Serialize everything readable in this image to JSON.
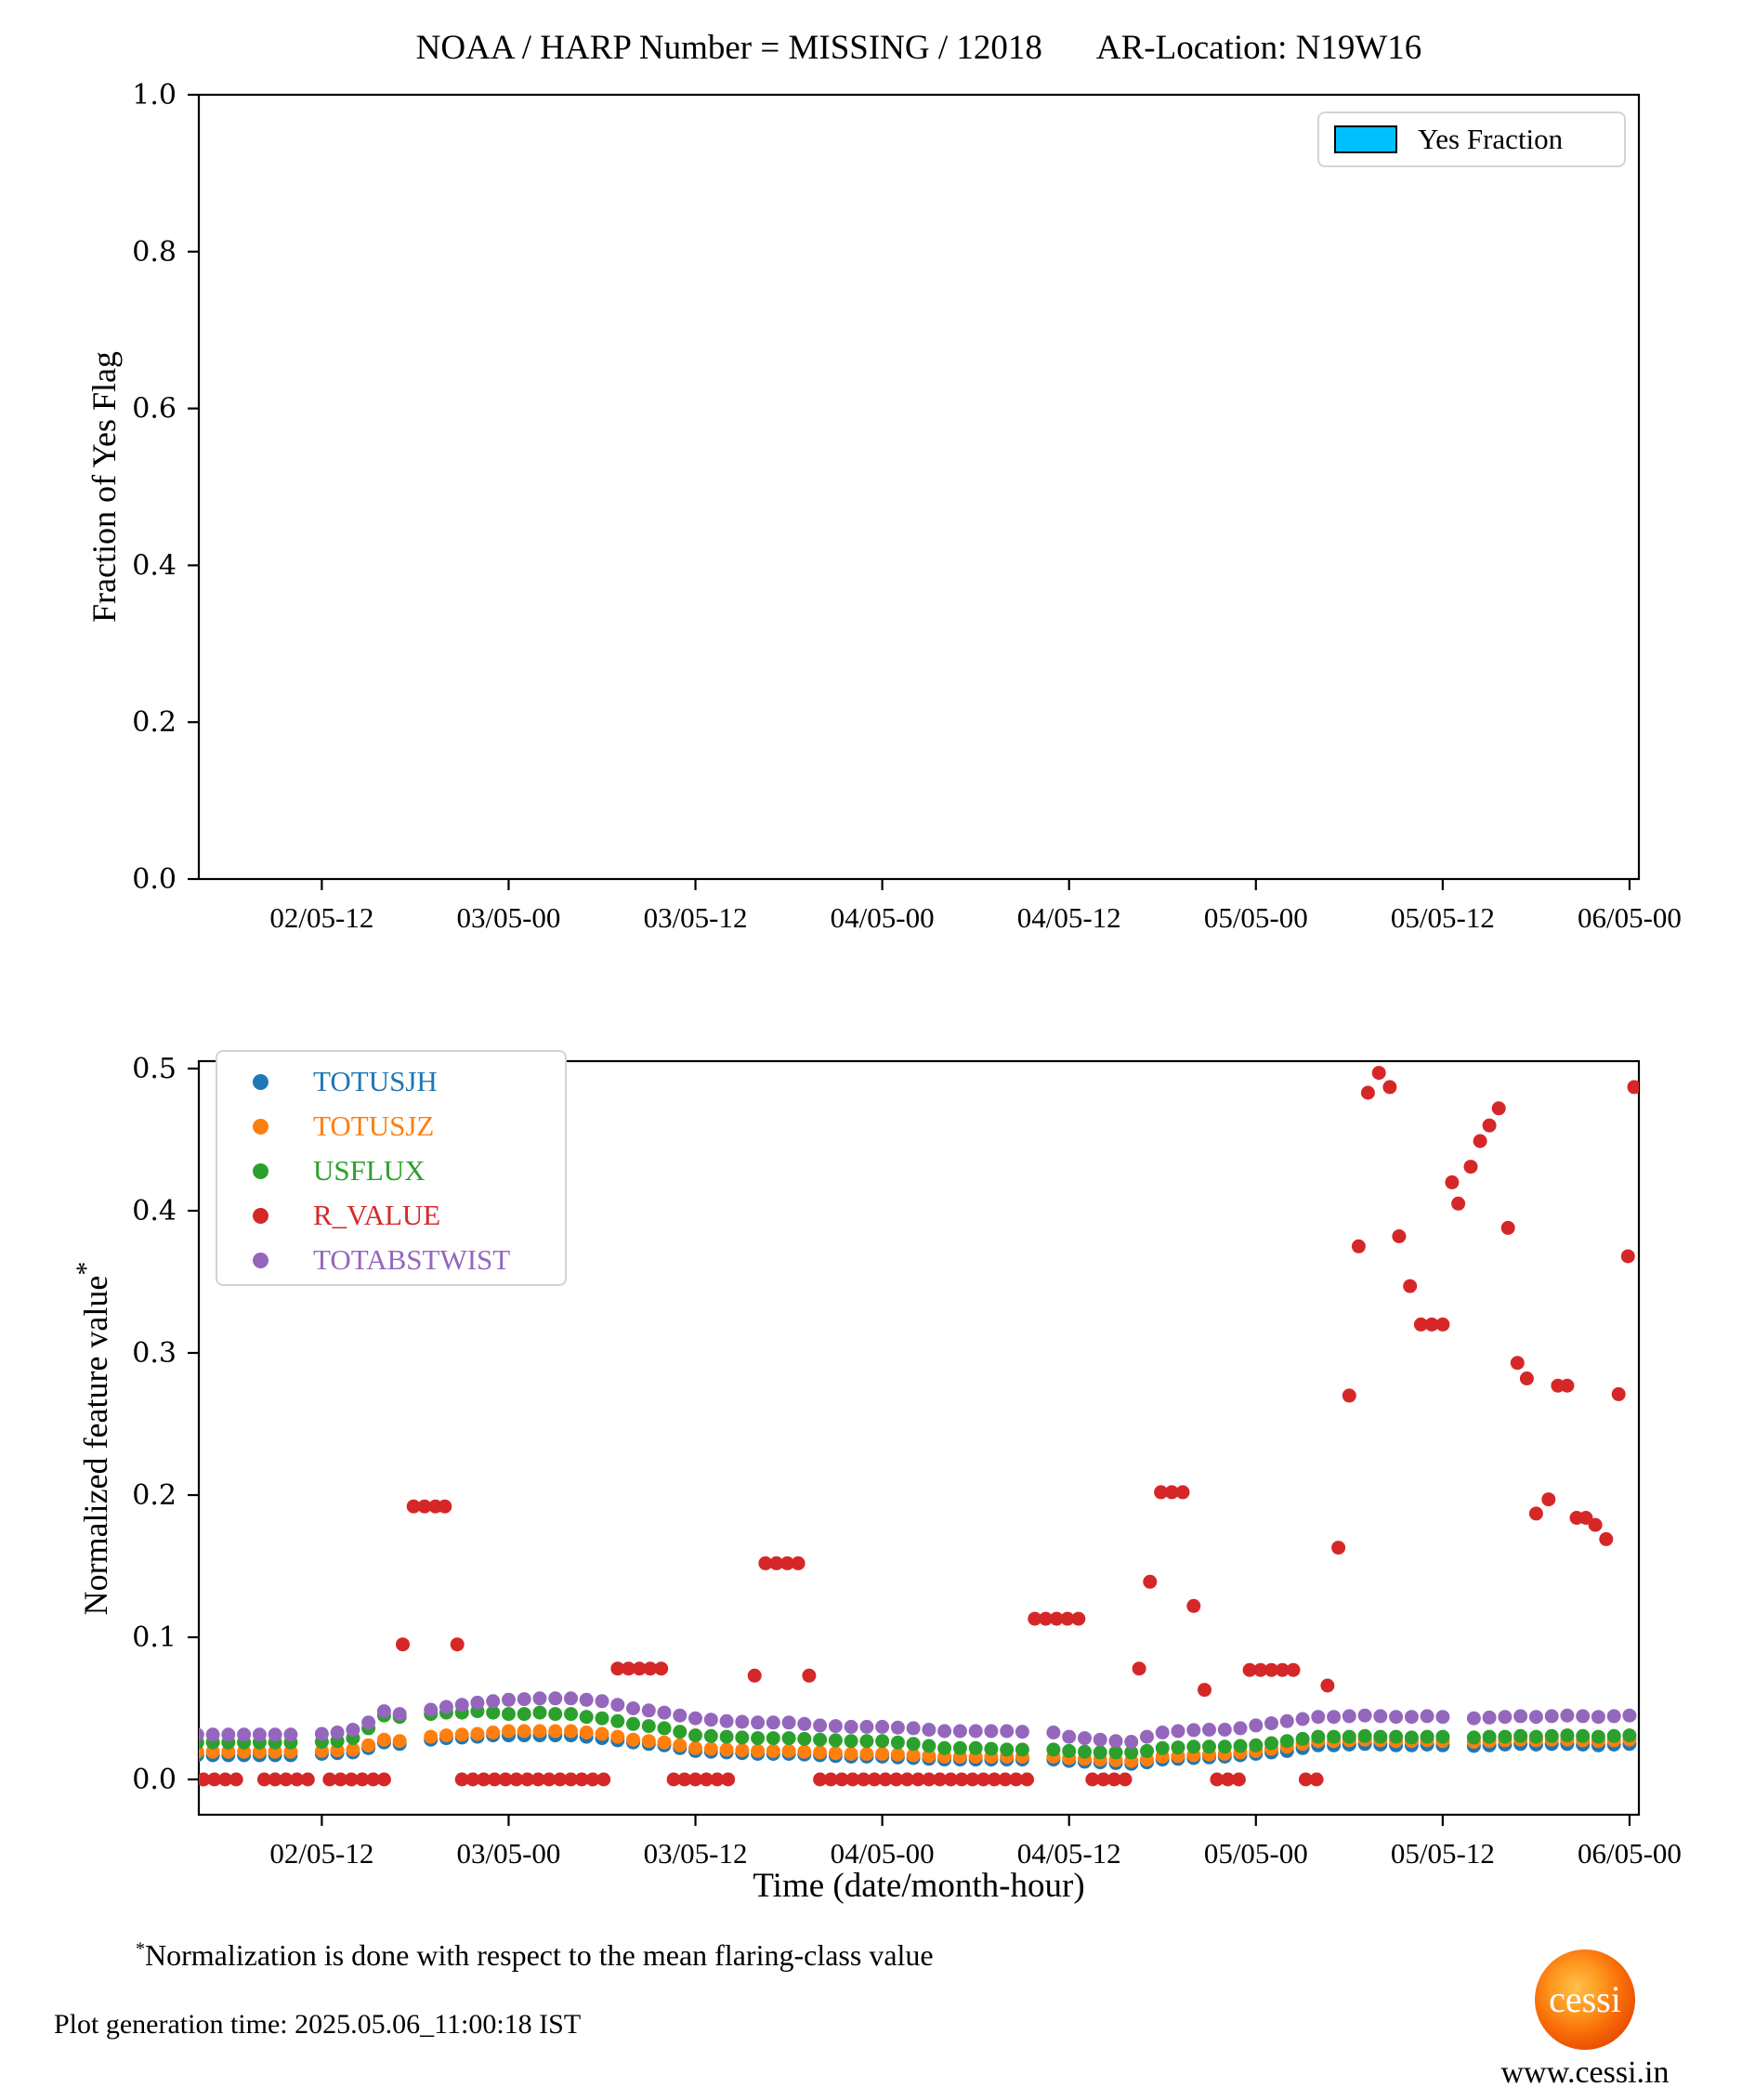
{
  "header": {
    "title_left": "NOAA / HARP Number = MISSING / 12018",
    "title_right": "AR-Location: N19W16"
  },
  "footnote": {
    "marker": "*",
    "text": "Normalization is done with respect to the mean flaring-class value"
  },
  "footer": {
    "plot_generation": "Plot generation time: 2025.05.06_11:00:18 IST",
    "logo_text": "cessi",
    "website": "www.cessi.in"
  },
  "colors": {
    "yes_fraction": "#00BFFF",
    "TOTUSJH": "#1f77b4",
    "TOTUSJZ": "#ff7f0e",
    "USFLUX": "#2ca02c",
    "R_VALUE": "#d62728",
    "TOTABSTWIST": "#9467bd"
  },
  "chart_data": [
    {
      "type": "scatter",
      "title": "NOAA / HARP Number = MISSING / 12018   AR-Location: N19W16",
      "ylabel": "Fraction of Yes Flag",
      "ylim": [
        0.0,
        1.0
      ],
      "yticks": [
        0.0,
        0.2,
        0.4,
        0.6,
        0.8,
        1.0
      ],
      "ytick_labels": [
        "0.0",
        "0.2",
        "0.4",
        "0.6",
        "0.8",
        "1.0"
      ],
      "x_range_hours": [
        4.1,
        96.6
      ],
      "xtick_hours": [
        12,
        24,
        36,
        48,
        60,
        72,
        84,
        96
      ],
      "xtick_labels": [
        "02/05-12",
        "03/05-00",
        "03/05-12",
        "04/05-00",
        "04/05-12",
        "05/05-00",
        "05/05-12",
        "06/05-00"
      ],
      "legend": [
        {
          "label": "Yes Fraction",
          "color": "#00BFFF",
          "marker": "patch"
        }
      ],
      "grid": false,
      "series": []
    },
    {
      "type": "scatter",
      "xlabel": "Time (date/month-hour)",
      "ylabel": "Normalized feature value",
      "ylabel_superscript": "*",
      "ylim": [
        0.0,
        0.5
      ],
      "yticks": [
        0.0,
        0.1,
        0.2,
        0.3,
        0.4,
        0.5
      ],
      "ytick_labels": [
        "0.0",
        "0.1",
        "0.2",
        "0.3",
        "0.4",
        "0.5"
      ],
      "x_range_hours": [
        4.1,
        96.6
      ],
      "x_hours_note": "hours measured from 02/05-00 (date/month-hour)",
      "xtick_hours": [
        12,
        24,
        36,
        48,
        60,
        72,
        84,
        96
      ],
      "xtick_labels": [
        "02/05-12",
        "03/05-00",
        "03/05-12",
        "04/05-00",
        "04/05-12",
        "05/05-00",
        "05/05-12",
        "06/05-00"
      ],
      "grid": false,
      "legend_position": "upper left",
      "series": [
        {
          "name": "TOTUSJH",
          "color": "#1f77b4",
          "start_h": 4,
          "step_h": 1,
          "values": [
            0.017,
            0.017,
            0.017,
            0.017,
            0.017,
            0.017,
            0.017,
            null,
            0.018,
            0.0185,
            0.019,
            0.022,
            0.026,
            0.025,
            null,
            0.028,
            0.029,
            0.0295,
            0.03,
            0.031,
            0.031,
            0.031,
            0.031,
            0.031,
            0.031,
            0.03,
            0.029,
            0.0275,
            0.026,
            0.025,
            0.024,
            0.022,
            0.02,
            0.0195,
            0.019,
            0.0185,
            0.018,
            0.018,
            0.018,
            0.0175,
            0.017,
            0.0165,
            0.016,
            0.016,
            0.016,
            0.0155,
            0.015,
            0.0145,
            0.014,
            0.014,
            0.014,
            0.014,
            0.014,
            0.014,
            null,
            0.014,
            0.013,
            0.0125,
            0.012,
            0.0115,
            0.011,
            0.012,
            0.014,
            0.0145,
            0.015,
            0.0155,
            0.016,
            0.017,
            0.018,
            0.019,
            0.02,
            0.022,
            0.024,
            0.024,
            0.0245,
            0.025,
            0.0245,
            0.024,
            0.024,
            0.0245,
            0.024,
            null,
            0.0235,
            0.024,
            0.0245,
            0.025,
            0.0245,
            0.025,
            0.025,
            0.0245,
            0.024,
            0.0245,
            0.025
          ]
        },
        {
          "name": "TOTUSJZ",
          "color": "#ff7f0e",
          "start_h": 4,
          "step_h": 1,
          "values": [
            0.0195,
            0.0195,
            0.0195,
            0.0195,
            0.0195,
            0.0195,
            0.0195,
            null,
            0.02,
            0.0205,
            0.021,
            0.024,
            0.028,
            0.027,
            null,
            0.03,
            0.031,
            0.0315,
            0.032,
            0.033,
            0.034,
            0.034,
            0.034,
            0.034,
            0.034,
            0.033,
            0.032,
            0.03,
            0.028,
            0.027,
            0.026,
            0.024,
            0.022,
            0.0215,
            0.021,
            0.0205,
            0.02,
            0.02,
            0.02,
            0.0195,
            0.019,
            0.0185,
            0.018,
            0.018,
            0.018,
            0.0175,
            0.017,
            0.0165,
            0.016,
            0.016,
            0.016,
            0.016,
            0.016,
            0.016,
            null,
            0.016,
            0.015,
            0.0145,
            0.014,
            0.0135,
            0.013,
            0.014,
            0.016,
            0.0165,
            0.017,
            0.0175,
            0.018,
            0.019,
            0.02,
            0.0215,
            0.023,
            0.025,
            0.027,
            0.027,
            0.0275,
            0.028,
            0.0275,
            0.027,
            0.027,
            0.0275,
            0.027,
            null,
            0.0265,
            0.027,
            0.0275,
            0.028,
            0.0275,
            0.028,
            0.028,
            0.0275,
            0.027,
            0.0275,
            0.028
          ]
        },
        {
          "name": "USFLUX",
          "color": "#2ca02c",
          "start_h": 4,
          "step_h": 1,
          "values": [
            0.026,
            0.026,
            0.026,
            0.026,
            0.026,
            0.026,
            0.026,
            null,
            0.0265,
            0.027,
            0.029,
            0.036,
            0.045,
            0.044,
            null,
            0.046,
            0.047,
            0.047,
            0.048,
            0.047,
            0.046,
            0.046,
            0.047,
            0.046,
            0.046,
            0.044,
            0.043,
            0.041,
            0.039,
            0.0375,
            0.036,
            0.0335,
            0.031,
            0.0305,
            0.03,
            0.0295,
            0.029,
            0.029,
            0.029,
            0.0285,
            0.028,
            0.0275,
            0.027,
            0.027,
            0.027,
            0.026,
            0.025,
            0.0235,
            0.022,
            0.022,
            0.022,
            0.0215,
            0.021,
            0.021,
            null,
            0.021,
            0.02,
            0.0195,
            0.019,
            0.019,
            0.019,
            0.02,
            0.022,
            0.0225,
            0.023,
            0.023,
            0.023,
            0.0235,
            0.024,
            0.0255,
            0.027,
            0.0285,
            0.03,
            0.03,
            0.03,
            0.0305,
            0.03,
            0.03,
            0.0295,
            0.03,
            0.03,
            null,
            0.0295,
            0.03,
            0.03,
            0.0305,
            0.03,
            0.0305,
            0.031,
            0.0305,
            0.03,
            0.0305,
            0.031
          ]
        },
        {
          "name": "R_VALUE",
          "color": "#d62728",
          "points": [
            [
              4.4,
              0
            ],
            [
              5.1,
              0
            ],
            [
              5.8,
              0
            ],
            [
              6.5,
              0
            ],
            [
              8.3,
              0
            ],
            [
              9.0,
              0
            ],
            [
              9.7,
              0
            ],
            [
              10.4,
              0
            ],
            [
              11.1,
              0
            ],
            [
              12.5,
              0
            ],
            [
              13.2,
              0
            ],
            [
              13.9,
              0
            ],
            [
              14.6,
              0
            ],
            [
              15.3,
              0
            ],
            [
              16.0,
              0
            ],
            [
              17.2,
              0.095
            ],
            [
              17.9,
              0.192
            ],
            [
              18.6,
              0.192
            ],
            [
              19.3,
              0.192
            ],
            [
              19.9,
              0.192
            ],
            [
              20.7,
              0.095
            ],
            [
              21.0,
              0
            ],
            [
              21.7,
              0
            ],
            [
              22.4,
              0
            ],
            [
              23.1,
              0
            ],
            [
              23.8,
              0
            ],
            [
              24.5,
              0
            ],
            [
              25.2,
              0
            ],
            [
              25.9,
              0
            ],
            [
              26.6,
              0
            ],
            [
              27.3,
              0
            ],
            [
              28.0,
              0
            ],
            [
              28.7,
              0
            ],
            [
              29.4,
              0
            ],
            [
              30.1,
              0
            ],
            [
              31.0,
              0.078
            ],
            [
              31.7,
              0.078
            ],
            [
              32.4,
              0.078
            ],
            [
              33.1,
              0.078
            ],
            [
              33.8,
              0.078
            ],
            [
              34.6,
              0
            ],
            [
              35.3,
              0
            ],
            [
              36.0,
              0
            ],
            [
              36.7,
              0
            ],
            [
              37.4,
              0
            ],
            [
              38.1,
              0
            ],
            [
              39.8,
              0.073
            ],
            [
              40.5,
              0.152
            ],
            [
              41.2,
              0.152
            ],
            [
              41.9,
              0.152
            ],
            [
              42.6,
              0.152
            ],
            [
              43.3,
              0.073
            ],
            [
              44.0,
              0
            ],
            [
              44.7,
              0
            ],
            [
              45.4,
              0
            ],
            [
              46.1,
              0
            ],
            [
              46.8,
              0
            ],
            [
              47.5,
              0
            ],
            [
              48.2,
              0
            ],
            [
              48.9,
              0
            ],
            [
              49.6,
              0
            ],
            [
              50.3,
              0
            ],
            [
              51.0,
              0
            ],
            [
              51.7,
              0
            ],
            [
              52.4,
              0
            ],
            [
              53.1,
              0
            ],
            [
              53.8,
              0
            ],
            [
              54.5,
              0
            ],
            [
              55.2,
              0
            ],
            [
              55.9,
              0
            ],
            [
              56.6,
              0
            ],
            [
              57.3,
              0
            ],
            [
              57.8,
              0.113
            ],
            [
              58.5,
              0.113
            ],
            [
              59.2,
              0.113
            ],
            [
              59.9,
              0.113
            ],
            [
              60.6,
              0.113
            ],
            [
              61.5,
              0
            ],
            [
              62.2,
              0
            ],
            [
              62.9,
              0
            ],
            [
              63.6,
              0
            ],
            [
              64.5,
              0.078
            ],
            [
              65.2,
              0.139
            ],
            [
              65.9,
              0.202
            ],
            [
              66.6,
              0.202
            ],
            [
              67.3,
              0.202
            ],
            [
              68.0,
              0.122
            ],
            [
              68.7,
              0.063
            ],
            [
              69.5,
              0
            ],
            [
              70.2,
              0
            ],
            [
              70.9,
              0
            ],
            [
              71.6,
              0.077
            ],
            [
              72.3,
              0.077
            ],
            [
              73.0,
              0.077
            ],
            [
              73.7,
              0.077
            ],
            [
              74.4,
              0.077
            ],
            [
              75.2,
              0
            ],
            [
              75.9,
              0
            ],
            [
              76.6,
              0.066
            ],
            [
              77.3,
              0.163
            ],
            [
              78.0,
              0.27
            ],
            [
              78.6,
              0.375
            ],
            [
              79.2,
              0.483
            ],
            [
              79.9,
              0.497
            ],
            [
              80.6,
              0.487
            ],
            [
              81.2,
              0.382
            ],
            [
              81.9,
              0.347
            ],
            [
              82.6,
              0.32
            ],
            [
              83.3,
              0.32
            ],
            [
              84.0,
              0.32
            ],
            [
              84.6,
              0.42
            ],
            [
              85.0,
              0.405
            ],
            [
              85.8,
              0.431
            ],
            [
              86.4,
              0.449
            ],
            [
              87.0,
              0.46
            ],
            [
              87.6,
              0.472
            ],
            [
              88.2,
              0.388
            ],
            [
              88.8,
              0.293
            ],
            [
              89.4,
              0.282
            ],
            [
              90.0,
              0.187
            ],
            [
              90.8,
              0.197
            ],
            [
              91.4,
              0.277
            ],
            [
              92.0,
              0.277
            ],
            [
              92.6,
              0.184
            ],
            [
              93.2,
              0.184
            ],
            [
              93.8,
              0.179
            ],
            [
              94.5,
              0.169
            ],
            [
              95.3,
              0.271
            ],
            [
              95.9,
              0.368
            ],
            [
              96.3,
              0.487
            ]
          ]
        },
        {
          "name": "TOTABSTWIST",
          "color": "#9467bd",
          "start_h": 4,
          "step_h": 1,
          "values": [
            0.0315,
            0.0315,
            0.0315,
            0.0315,
            0.0315,
            0.0315,
            0.0315,
            null,
            0.032,
            0.033,
            0.035,
            0.04,
            0.048,
            0.046,
            null,
            0.049,
            0.051,
            0.0525,
            0.054,
            0.055,
            0.056,
            0.0565,
            0.057,
            0.057,
            0.057,
            0.056,
            0.055,
            0.0525,
            0.05,
            0.0485,
            0.047,
            0.045,
            0.043,
            0.042,
            0.041,
            0.0405,
            0.04,
            0.04,
            0.04,
            0.039,
            0.038,
            0.0375,
            0.037,
            0.037,
            0.037,
            0.0365,
            0.036,
            0.035,
            0.034,
            0.034,
            0.034,
            0.034,
            0.034,
            0.0335,
            null,
            0.033,
            0.03,
            0.029,
            0.028,
            0.027,
            0.0265,
            0.03,
            0.033,
            0.034,
            0.0347,
            0.035,
            0.035,
            0.036,
            0.038,
            0.0395,
            0.041,
            0.0425,
            0.044,
            0.044,
            0.0445,
            0.045,
            0.0445,
            0.044,
            0.044,
            0.0445,
            0.044,
            null,
            0.043,
            0.0435,
            0.044,
            0.0445,
            0.044,
            0.0445,
            0.045,
            0.0445,
            0.044,
            0.0445,
            0.045
          ]
        }
      ],
      "legend": [
        {
          "label": "TOTUSJH",
          "color": "#1f77b4",
          "marker": "dot"
        },
        {
          "label": "TOTUSJZ",
          "color": "#ff7f0e",
          "marker": "dot"
        },
        {
          "label": "USFLUX",
          "color": "#2ca02c",
          "marker": "dot"
        },
        {
          "label": "R_VALUE",
          "color": "#d62728",
          "marker": "dot"
        },
        {
          "label": "TOTABSTWIST",
          "color": "#9467bd",
          "marker": "dot"
        }
      ]
    }
  ]
}
